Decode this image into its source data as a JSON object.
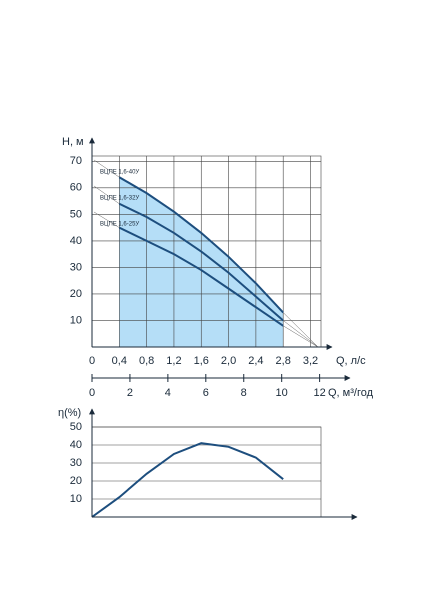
{
  "chart_data": [
    {
      "type": "line",
      "ylabel": "H, м",
      "xlabel": "Q, л/с",
      "x2label": "Q, м³/год",
      "x": [
        0.4,
        0.8,
        1.2,
        1.6,
        2.0,
        2.4,
        2.8
      ],
      "series": [
        {
          "name": "ВЦПЕ 1,6-40У",
          "color": "#1d4e7e",
          "values": [
            64,
            58,
            51,
            43,
            34,
            24,
            13
          ]
        },
        {
          "name": "ВЦПЕ 1,6-32У",
          "color": "#1d4e7e",
          "values": [
            54,
            49,
            43,
            36,
            28,
            19,
            10
          ]
        },
        {
          "name": "ВЦПЕ 1,6-25У",
          "color": "#1d4e7e",
          "values": [
            45,
            40,
            35,
            29,
            22,
            15,
            8
          ]
        }
      ],
      "fill": "#b5def7",
      "xlim": [
        0,
        3.5
      ],
      "xticks": [
        0,
        {
          "value": 0.4,
          "label": "0,4"
        },
        {
          "value": 0.8,
          "label": "0,8"
        },
        {
          "value": 1.2,
          "label": "1,2"
        },
        {
          "value": 1.6,
          "label": "1,6"
        },
        {
          "value": 2,
          "label": "2,0"
        },
        {
          "value": 2.4,
          "label": "2,4"
        },
        {
          "value": 2.8,
          "label": "2,8"
        },
        {
          "value": 3.2,
          "label": "3,2"
        }
      ],
      "ylim": [
        0,
        72
      ],
      "yticks": [
        10,
        20,
        30,
        40,
        50,
        60,
        70
      ],
      "x2lim": [
        0,
        12.6
      ],
      "x2ticks": [
        0,
        2,
        4,
        6,
        8,
        10,
        12
      ],
      "grid": true
    },
    {
      "type": "line",
      "ylabel": "η(%)",
      "x": [
        0,
        0.4,
        0.8,
        1.2,
        1.6,
        2.0,
        2.4,
        2.8
      ],
      "series": [
        {
          "color": "#1d4e7e",
          "values": [
            0,
            11,
            24,
            35,
            41,
            39,
            33,
            21
          ]
        }
      ],
      "xlim": [
        0,
        3.5
      ],
      "ylim": [
        0,
        50
      ],
      "yticks": [
        10,
        20,
        30,
        40,
        50
      ],
      "grid": true
    }
  ]
}
